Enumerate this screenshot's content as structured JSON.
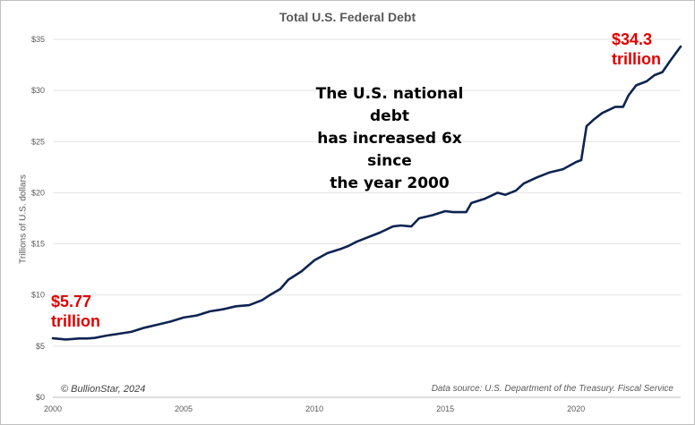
{
  "chart_data": {
    "type": "line",
    "title": "Total U.S. Federal Debt",
    "ylabel": "Trillions of U.S. dollars",
    "xlabel": "",
    "xlim": [
      2000,
      2024
    ],
    "ylim": [
      0,
      35
    ],
    "x_ticks": [
      "2000",
      "2005",
      "2010",
      "2015",
      "2020"
    ],
    "y_ticks": [
      "$0",
      "$5",
      "$10",
      "$15",
      "$20",
      "$25",
      "$30",
      "$35"
    ],
    "grid": "horizontal",
    "line_color": "#0d2451",
    "series": [
      {
        "x": [
          2000.0,
          2000.5,
          2001.0,
          2001.3,
          2001.6,
          2002.0,
          2002.5,
          2003.0,
          2003.5,
          2004.0,
          2004.5,
          2005.0,
          2005.5,
          2006.0,
          2006.5,
          2007.0,
          2007.5,
          2008.0,
          2008.3,
          2008.7,
          2009.0,
          2009.5,
          2010.0,
          2010.5,
          2011.0,
          2011.3,
          2011.6,
          2012.0,
          2012.5,
          2013.0,
          2013.3,
          2013.7,
          2014.0,
          2014.5,
          2015.0,
          2015.3,
          2015.8,
          2016.0,
          2016.5,
          2017.0,
          2017.3,
          2017.7,
          2018.0,
          2018.5,
          2019.0,
          2019.5,
          2020.0,
          2020.2,
          2020.4,
          2020.7,
          2021.0,
          2021.5,
          2021.8,
          2022.0,
          2022.3,
          2022.7,
          2023.0,
          2023.3,
          2023.6,
          2024.0
        ],
        "y": [
          5.77,
          5.65,
          5.75,
          5.75,
          5.8,
          6.0,
          6.2,
          6.4,
          6.8,
          7.1,
          7.4,
          7.8,
          8.0,
          8.4,
          8.6,
          8.9,
          9.0,
          9.5,
          10.0,
          10.6,
          11.5,
          12.3,
          13.4,
          14.1,
          14.5,
          14.8,
          15.2,
          15.6,
          16.1,
          16.7,
          16.8,
          16.7,
          17.5,
          17.8,
          18.2,
          18.1,
          18.1,
          19.0,
          19.4,
          20.0,
          19.8,
          20.2,
          20.9,
          21.5,
          22.0,
          22.3,
          23.0,
          23.2,
          26.5,
          27.2,
          27.8,
          28.4,
          28.4,
          29.5,
          30.5,
          30.9,
          31.5,
          31.8,
          32.9,
          34.3
        ]
      }
    ]
  },
  "annotations": {
    "start_value": "$5.77",
    "start_unit": "trillion",
    "end_value": "$34.3",
    "end_unit": "trillion",
    "headline_1": "The U.S. national debt",
    "headline_2": "has increased 6x since",
    "headline_3": "the year 2000"
  },
  "footer": {
    "credit": "© BullionStar, 2024",
    "source": "Data source: U.S. Department of the Treasury. Fiscal Service"
  }
}
